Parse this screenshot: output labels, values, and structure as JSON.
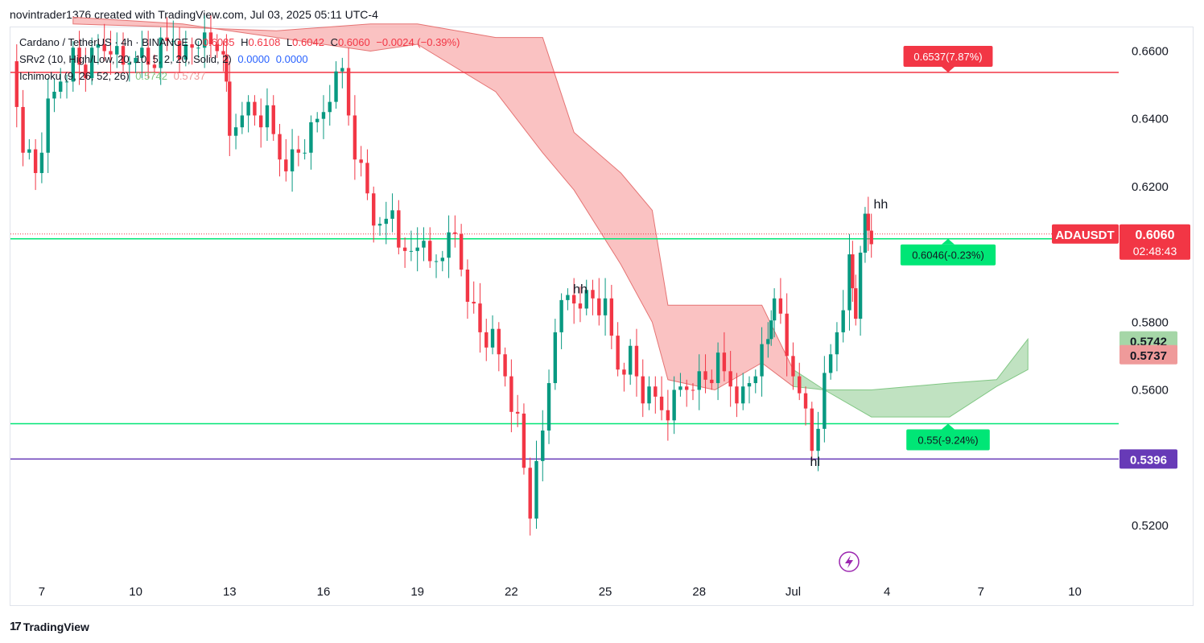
{
  "header": {
    "attribution": "novintrader1376 created with TradingView.com, Jul 03, 2025 05:11 UTC-4"
  },
  "legend": {
    "line1": {
      "symbol": "Cardano / TetherUS · 4h · BINANCE",
      "o_label": "O",
      "o": "0.6085",
      "h_label": "H",
      "h": "0.6108",
      "l_label": "L",
      "l": "0.6042",
      "c_label": "C",
      "c": "0.6060",
      "change": "−0.0024 (−0.39%)"
    },
    "line2": {
      "name": "SRv2 (10, High/Low, 20, 10, 5, 2, 20, Solid, 2)",
      "v1": "0.0000",
      "v2": "0.0000"
    },
    "line3": {
      "name": "Ichimoku (9, 26, 52, 26)",
      "v1": "0.5742",
      "v2": "0.5737"
    }
  },
  "footer": {
    "brand": "TradingView",
    "logo_icon": "tradingview-logo-icon"
  },
  "colors": {
    "up": "#089981",
    "down": "#f23645",
    "green_line": "#00e676",
    "red_line": "#f23645",
    "purple_line": "#673ab7",
    "cloud_red": "#f8a8a8",
    "cloud_green": "#a5d6a7"
  },
  "chart_data": {
    "type": "candlestick",
    "title": "Cardano / TetherUS · 4h · BINANCE",
    "y_ticks": [
      "0.6600",
      "0.6400",
      "0.6200",
      "0.5800",
      "0.5600",
      "0.5200"
    ],
    "y_tick_values": [
      0.66,
      0.64,
      0.62,
      0.58,
      0.56,
      0.52
    ],
    "ylim": [
      0.505,
      0.667
    ],
    "x_ticks": [
      "7",
      "10",
      "13",
      "16",
      "19",
      "22",
      "25",
      "28",
      "Jul",
      "4",
      "7",
      "10"
    ],
    "x_tick_days": [
      7,
      10,
      13,
      16,
      19,
      22,
      25,
      28,
      31,
      34,
      37,
      40
    ],
    "xlim_days": [
      6.0,
      41.4
    ],
    "x_unit": "days since Jun 0 (Jun 30 = 30, Jul 1 = 31)",
    "candles_ohlc_compact": [
      [
        0.652,
        0.661,
        0.646,
        0.658
      ],
      [
        0.658,
        0.66,
        0.629,
        0.633
      ],
      [
        0.633,
        0.638,
        0.619,
        0.622
      ]
    ],
    "close_path": [
      [
        6.0,
        0.657
      ],
      [
        6.4,
        0.634
      ],
      [
        6.8,
        0.624
      ],
      [
        7.2,
        0.642
      ],
      [
        7.6,
        0.652
      ],
      [
        8.0,
        0.658
      ],
      [
        8.4,
        0.654
      ],
      [
        8.8,
        0.66
      ],
      [
        9.2,
        0.662
      ],
      [
        9.6,
        0.655
      ],
      [
        10.0,
        0.662
      ],
      [
        10.4,
        0.656
      ],
      [
        10.8,
        0.66
      ],
      [
        11.2,
        0.664
      ],
      [
        11.6,
        0.659
      ],
      [
        12.0,
        0.663
      ],
      [
        12.4,
        0.66
      ],
      [
        12.8,
        0.662
      ],
      [
        13.0,
        0.634
      ],
      [
        13.4,
        0.645
      ],
      [
        13.8,
        0.641
      ],
      [
        14.2,
        0.64
      ],
      [
        14.6,
        0.629
      ],
      [
        15.0,
        0.628
      ],
      [
        15.4,
        0.632
      ],
      [
        15.8,
        0.638
      ],
      [
        16.2,
        0.648
      ],
      [
        16.6,
        0.654
      ],
      [
        17.0,
        0.632
      ],
      [
        17.4,
        0.618
      ],
      [
        17.8,
        0.605
      ],
      [
        18.2,
        0.614
      ],
      [
        18.6,
        0.598
      ],
      [
        19.0,
        0.604
      ],
      [
        19.4,
        0.596
      ],
      [
        19.8,
        0.602
      ],
      [
        20.2,
        0.605
      ],
      [
        20.6,
        0.59
      ],
      [
        21.0,
        0.577
      ],
      [
        21.4,
        0.574
      ],
      [
        21.8,
        0.565
      ],
      [
        22.2,
        0.55
      ],
      [
        22.6,
        0.524
      ],
      [
        23.0,
        0.546
      ],
      [
        23.4,
        0.58
      ],
      [
        23.8,
        0.587
      ],
      [
        24.2,
        0.588
      ],
      [
        24.6,
        0.587
      ],
      [
        25.0,
        0.583
      ],
      [
        25.4,
        0.567
      ],
      [
        25.8,
        0.57
      ],
      [
        26.2,
        0.558
      ],
      [
        26.6,
        0.556
      ],
      [
        27.0,
        0.554
      ],
      [
        27.4,
        0.56
      ],
      [
        27.8,
        0.564
      ],
      [
        28.2,
        0.563
      ],
      [
        28.6,
        0.567
      ],
      [
        29.0,
        0.562
      ],
      [
        29.4,
        0.558
      ],
      [
        29.8,
        0.566
      ],
      [
        30.2,
        0.573
      ],
      [
        30.4,
        0.59
      ],
      [
        30.8,
        0.569
      ],
      [
        31.2,
        0.563
      ],
      [
        31.6,
        0.542
      ],
      [
        32.0,
        0.561
      ],
      [
        32.4,
        0.578
      ],
      [
        32.8,
        0.597
      ],
      [
        33.0,
        0.583
      ],
      [
        33.3,
        0.61
      ],
      [
        33.5,
        0.606
      ]
    ],
    "ichimoku_cloud": {
      "span_a": [
        [
          8.0,
          0.67
        ],
        [
          11.5,
          0.668
        ],
        [
          14.5,
          0.664
        ],
        [
          17.5,
          0.66
        ],
        [
          19.0,
          0.662
        ],
        [
          21.5,
          0.648
        ],
        [
          23.0,
          0.63
        ],
        [
          24.0,
          0.619
        ],
        [
          25.5,
          0.597
        ],
        [
          26.5,
          0.58
        ],
        [
          27.0,
          0.563
        ],
        [
          28.5,
          0.56
        ],
        [
          30.0,
          0.568
        ],
        [
          31.0,
          0.561
        ],
        [
          32.0,
          0.56
        ],
        [
          33.5,
          0.56
        ],
        [
          36.0,
          0.562
        ],
        [
          37.5,
          0.563
        ],
        [
          38.5,
          0.575
        ]
      ],
      "span_b": [
        [
          8.0,
          0.668
        ],
        [
          11.5,
          0.667
        ],
        [
          14.5,
          0.666
        ],
        [
          17.5,
          0.668
        ],
        [
          19.0,
          0.668
        ],
        [
          21.5,
          0.664
        ],
        [
          23.0,
          0.664
        ],
        [
          24.0,
          0.636
        ],
        [
          25.5,
          0.624
        ],
        [
          26.5,
          0.613
        ],
        [
          27.0,
          0.585
        ],
        [
          28.5,
          0.585
        ],
        [
          30.0,
          0.585
        ],
        [
          31.0,
          0.566
        ],
        [
          32.0,
          0.56
        ],
        [
          33.5,
          0.552
        ],
        [
          36.0,
          0.552
        ],
        [
          37.5,
          0.561
        ],
        [
          38.5,
          0.566
        ]
      ]
    },
    "lines": [
      {
        "name": "resistance-red",
        "value": 0.6537,
        "color": "#f23645",
        "label": "0.6537(7.87%)"
      },
      {
        "name": "entry-green",
        "value": 0.6046,
        "color": "#00e676",
        "label": "0.6046(-0.23%)"
      },
      {
        "name": "support-green",
        "value": 0.55,
        "color": "#00e676",
        "label": "0.55(-9.24%)"
      },
      {
        "name": "support-purple",
        "value": 0.5396,
        "color": "#673ab7",
        "label": "0.5396"
      }
    ],
    "price_tags": [
      {
        "symbol": "ADAUSDT",
        "price": "0.6060",
        "countdown": "02:48:43",
        "value": 0.606
      },
      {
        "price": "0.5742",
        "value": 0.5742
      },
      {
        "price": "0.5737",
        "value": 0.5737
      }
    ],
    "annotations": [
      {
        "text": "hh",
        "x": 24.2,
        "y": 0.5885
      },
      {
        "text": "hh",
        "x": 33.8,
        "y": 0.6135
      },
      {
        "text": "hl",
        "x": 31.7,
        "y": 0.5375
      }
    ],
    "grid": false,
    "legend": "top-left"
  }
}
